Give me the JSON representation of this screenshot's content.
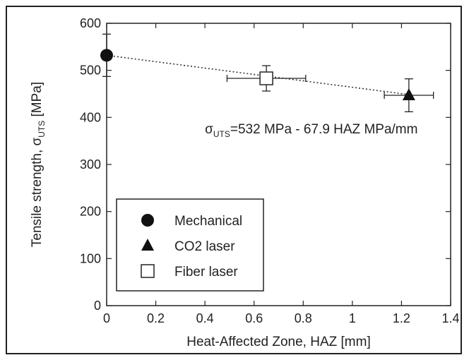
{
  "chart_data": {
    "type": "scatter",
    "xlabel": "Heat-Affected Zone, HAZ [mm]",
    "ylabel_main": "Tensile strength, σ",
    "ylabel_sub": "UTS",
    "ylabel_unit": " [MPa]",
    "xlim": [
      0,
      1.4
    ],
    "ylim": [
      0,
      600
    ],
    "x_ticks": [
      0,
      0.2,
      0.4,
      0.6,
      0.8,
      1,
      1.2,
      1.4
    ],
    "x_tick_labels": [
      "0",
      "0.2",
      "0.4",
      "0.6",
      "0.8",
      "1",
      "1.2",
      "1.4"
    ],
    "y_ticks": [
      0,
      100,
      200,
      300,
      400,
      500,
      600
    ],
    "y_tick_labels": [
      "0",
      "100",
      "200",
      "300",
      "400",
      "500",
      "600"
    ],
    "grid": false,
    "legend_position": "bottom-left",
    "series": [
      {
        "name": "Mechanical",
        "marker": "filled-circle",
        "points": [
          {
            "x": 0,
            "y": 532,
            "y_err": 45
          }
        ]
      },
      {
        "name": "CO2 laser",
        "marker": "filled-triangle",
        "points": [
          {
            "x": 1.23,
            "y": 447,
            "y_err": 35,
            "x_err": 0.1
          }
        ]
      },
      {
        "name": "Fiber laser",
        "marker": "open-square",
        "points": [
          {
            "x": 0.65,
            "y": 483,
            "y_err": 27,
            "x_err": 0.16
          }
        ]
      }
    ],
    "fit_line": {
      "intercept": 532,
      "slope": -67.9,
      "x_range": [
        0,
        1.23
      ],
      "style": "dotted"
    },
    "annotation": {
      "sigma": "σ",
      "sub": "UTS",
      "rest": "=532 MPa - 67.9 HAZ MPa/mm",
      "x": 0.4,
      "y": 375
    }
  }
}
